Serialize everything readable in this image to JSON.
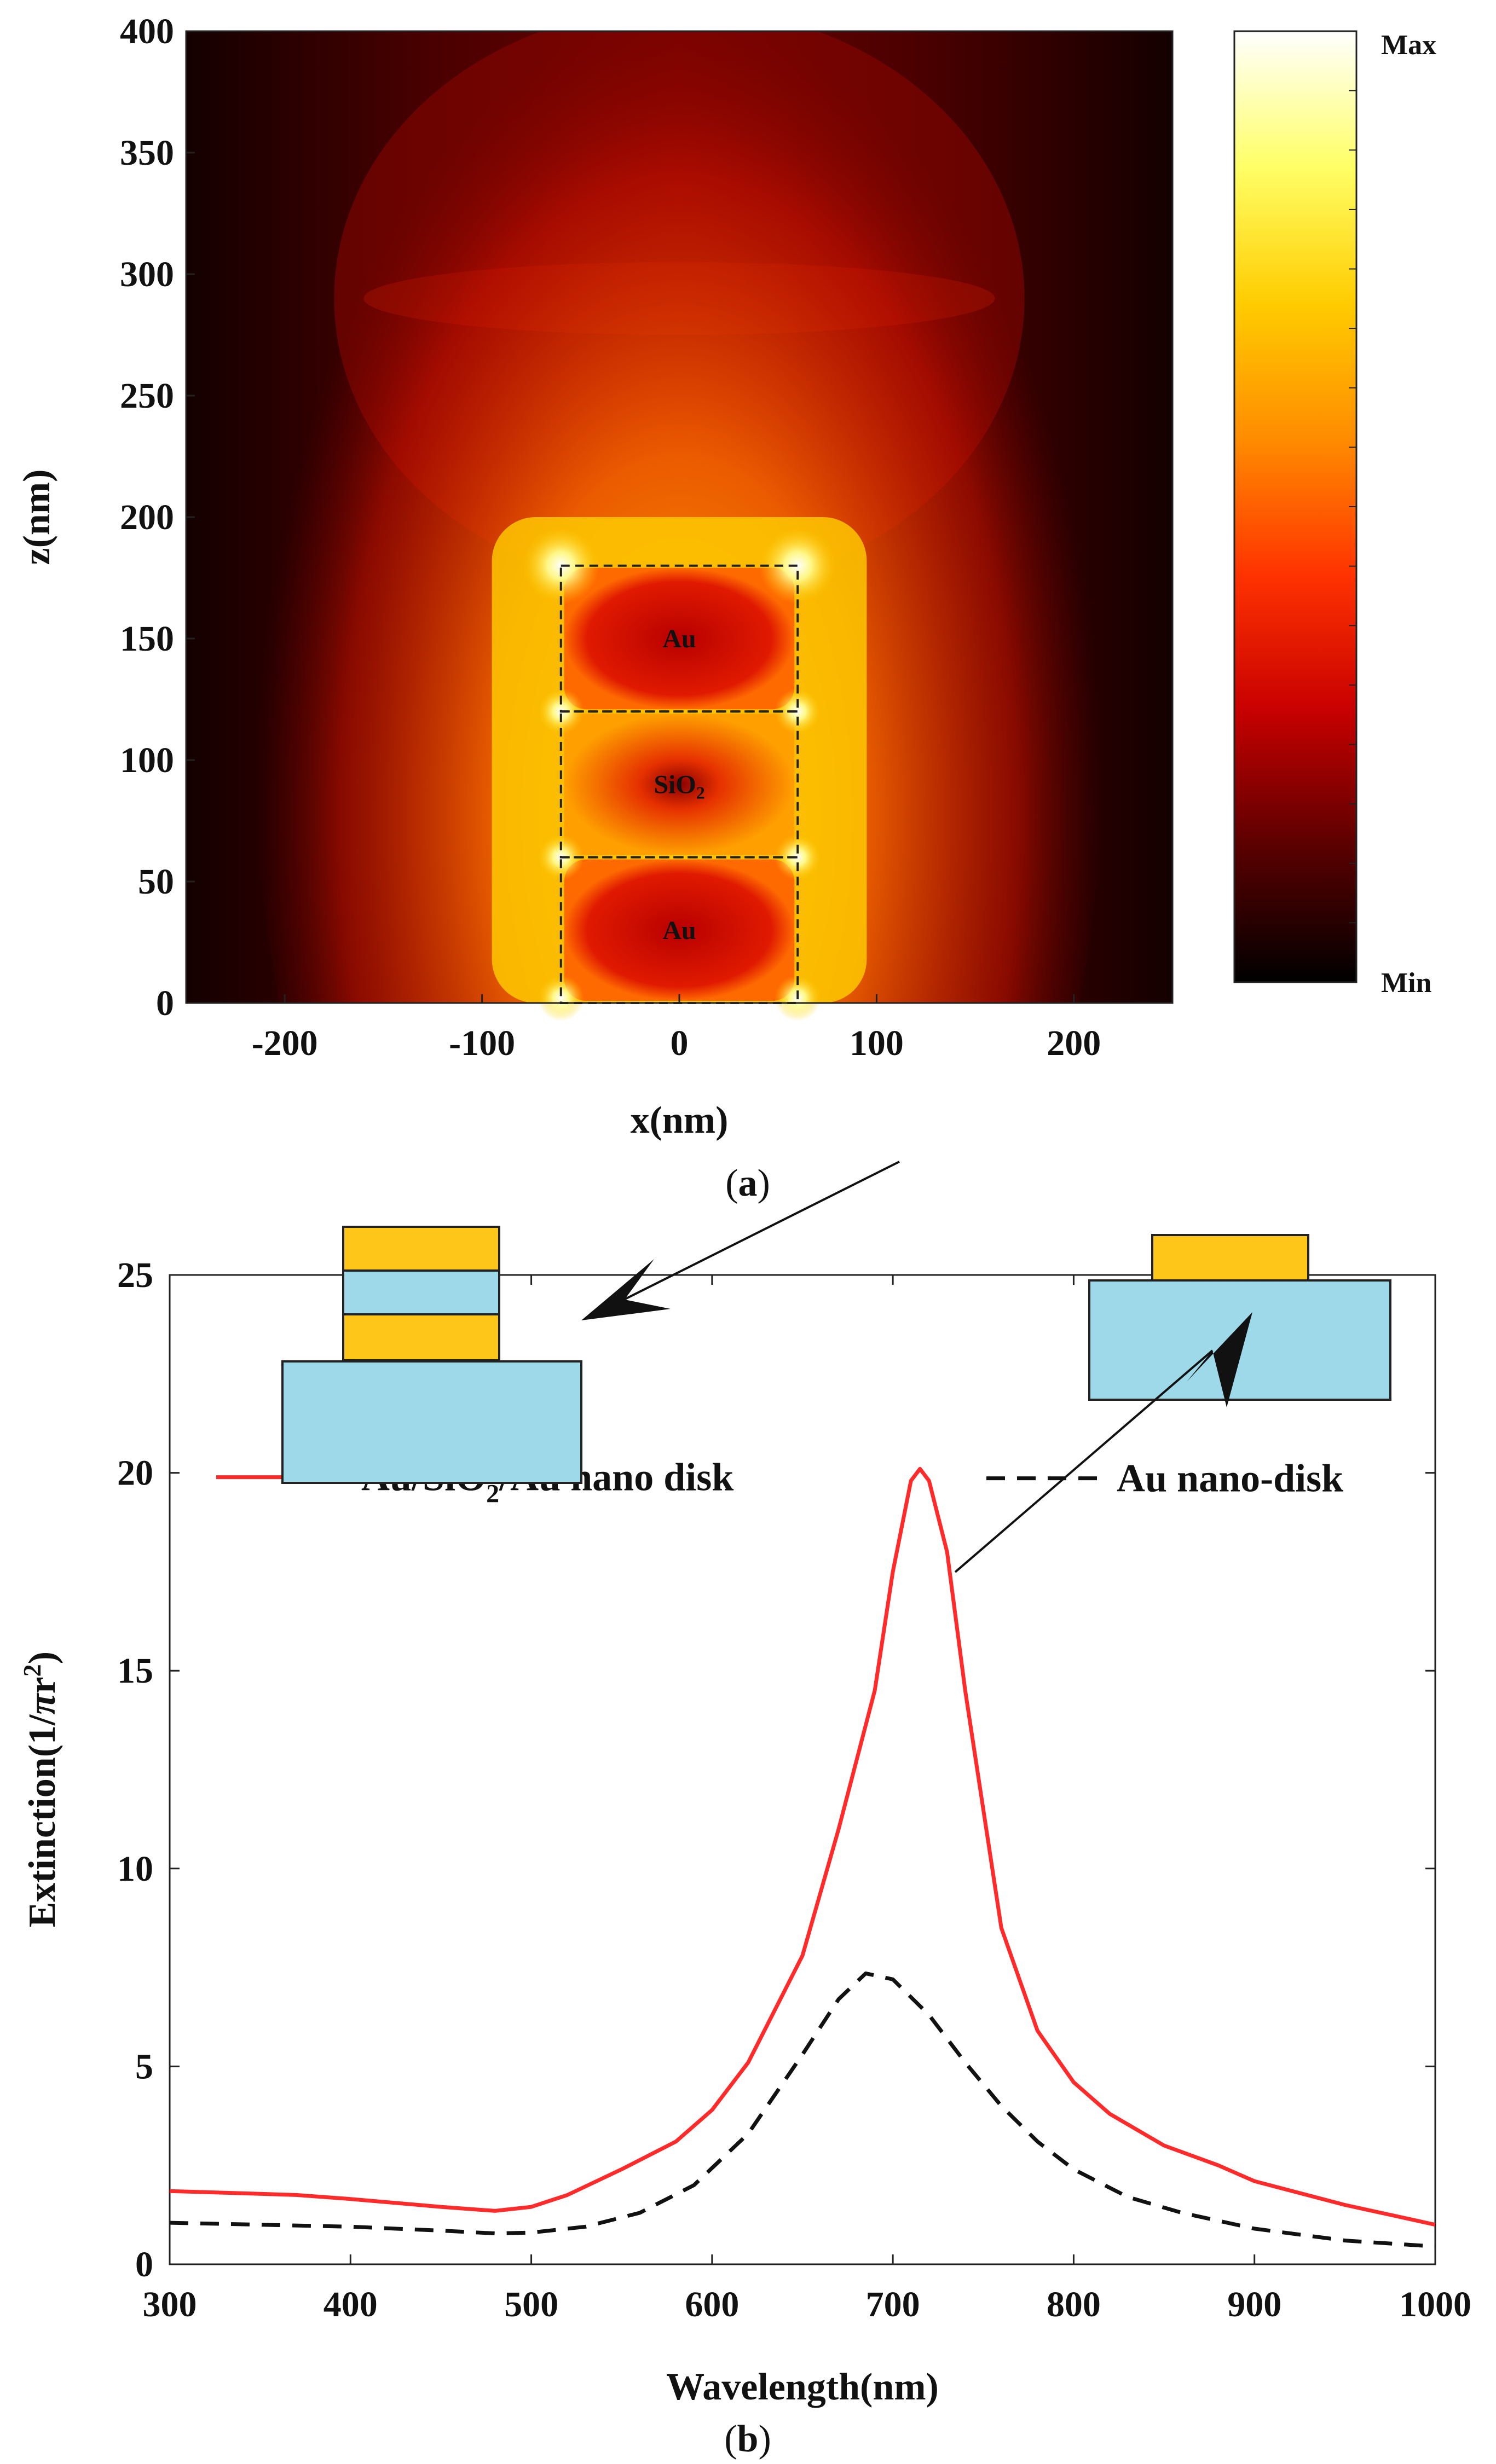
{
  "chart_data": [
    {
      "type": "heatmap",
      "panel_label": "a",
      "xlabel": "x(nm)",
      "ylabel": "z(nm)",
      "xlim": [
        -250,
        250
      ],
      "ylim": [
        0,
        400
      ],
      "x_ticks": [
        -200,
        -100,
        0,
        100,
        200
      ],
      "y_ticks": [
        0,
        50,
        100,
        150,
        200,
        250,
        300,
        350,
        400
      ],
      "colorbar": {
        "max_label": "Max",
        "min_label": "Min",
        "colors": [
          "#000000",
          "#5a0000",
          "#c80000",
          "#ff3300",
          "#ff8c00",
          "#ffcc00",
          "#ffff66",
          "#ffffff"
        ]
      },
      "regions": [
        {
          "label": "Au",
          "x": [
            -60,
            60
          ],
          "z": [
            120,
            180
          ]
        },
        {
          "label": "SiO",
          "subscript": "2",
          "x": [
            -60,
            60
          ],
          "z": [
            60,
            120
          ]
        },
        {
          "label": "Au",
          "x": [
            -60,
            60
          ],
          "z": [
            0,
            60
          ]
        }
      ]
    },
    {
      "type": "line",
      "panel_label": "b",
      "xlabel": "Wavelength(nm)",
      "ylabel_parts": [
        "Extinction(1/",
        "π",
        "r",
        "2",
        ")"
      ],
      "xlim": [
        300,
        1000
      ],
      "ylim": [
        0,
        25
      ],
      "x_ticks": [
        300,
        400,
        500,
        600,
        700,
        800,
        900,
        1000
      ],
      "y_ticks": [
        0,
        5,
        10,
        15,
        20,
        25
      ],
      "series": [
        {
          "name_parts": [
            "Au/SiO",
            "2",
            "/Au nano disk"
          ],
          "color": "#ff2a2a",
          "style": "solid",
          "x": [
            300,
            350,
            370,
            400,
            450,
            480,
            500,
            520,
            550,
            580,
            600,
            620,
            650,
            670,
            690,
            700,
            710,
            715,
            720,
            730,
            740,
            760,
            780,
            800,
            820,
            850,
            880,
            900,
            950,
            1000
          ],
          "y": [
            1.85,
            1.78,
            1.75,
            1.65,
            1.45,
            1.35,
            1.45,
            1.75,
            2.4,
            3.1,
            3.9,
            5.1,
            7.8,
            11.0,
            14.5,
            17.5,
            19.8,
            20.1,
            19.8,
            18.0,
            14.5,
            8.5,
            5.9,
            4.6,
            3.8,
            3.0,
            2.5,
            2.1,
            1.5,
            1.0
          ]
        },
        {
          "name_parts": [
            "Au nano-disk"
          ],
          "color": "#111111",
          "style": "dashed",
          "x": [
            300,
            350,
            400,
            450,
            480,
            500,
            530,
            560,
            590,
            620,
            650,
            670,
            685,
            700,
            720,
            740,
            760,
            780,
            800,
            830,
            860,
            900,
            950,
            1000
          ],
          "y": [
            1.05,
            1.0,
            0.95,
            0.85,
            0.78,
            0.8,
            0.95,
            1.3,
            2.0,
            3.3,
            5.3,
            6.7,
            7.35,
            7.2,
            6.3,
            5.1,
            4.0,
            3.1,
            2.4,
            1.7,
            1.3,
            0.9,
            0.6,
            0.45
          ]
        }
      ]
    }
  ]
}
